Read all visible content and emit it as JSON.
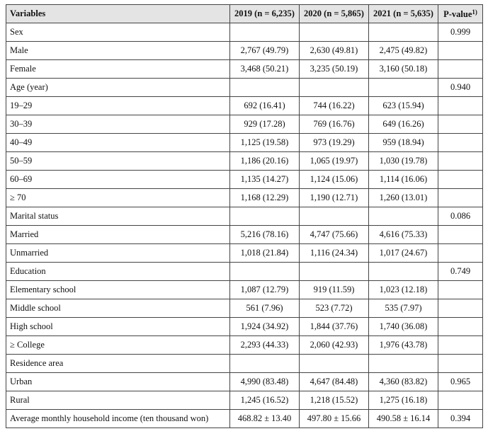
{
  "table": {
    "header": {
      "columns": [
        "Variables",
        "2019 (n = 6,235)",
        "2020 (n = 5,865)",
        "2021 (n = 5,635)"
      ],
      "p_value": {
        "text": "P-value",
        "note": "1)"
      }
    },
    "rows": [
      [
        "Sex",
        null,
        null,
        null,
        "0.999"
      ],
      [
        "Male",
        "2,767 (49.79)",
        "2,630 (49.81)",
        "2,475 (49.82)",
        null
      ],
      [
        "Female",
        "3,468 (50.21)",
        "3,235 (50.19)",
        "3,160 (50.18)",
        null
      ],
      [
        "Age (year)",
        null,
        null,
        null,
        "0.940"
      ],
      [
        "19–29",
        "692 (16.41)",
        "744 (16.22)",
        "623 (15.94)",
        null
      ],
      [
        "30–39",
        "929 (17.28)",
        "769 (16.76)",
        "649 (16.26)",
        null
      ],
      [
        "40–49",
        "1,125 (19.58)",
        "973 (19.29)",
        "959 (18.94)",
        null
      ],
      [
        "50–59",
        "1,186 (20.16)",
        "1,065 (19.97)",
        "1,030 (19.78)",
        null
      ],
      [
        "60–69",
        "1,135 (14.27)",
        "1,124 (15.06)",
        "1,114 (16.06)",
        null
      ],
      [
        "≥ 70",
        "1,168 (12.29)",
        "1,190 (12.71)",
        "1,260 (13.01)",
        null
      ],
      [
        "Marital status",
        null,
        null,
        null,
        "0.086"
      ],
      [
        "Married",
        "5,216 (78.16)",
        "4,747 (75.66)",
        "4,616 (75.33)",
        null
      ],
      [
        "Unmarried",
        "1,018 (21.84)",
        "1,116 (24.34)",
        "1,017 (24.67)",
        null
      ],
      [
        "Education",
        null,
        null,
        null,
        "0.749"
      ],
      [
        "Elementary school",
        "1,087 (12.79)",
        "919 (11.59)",
        "1,023 (12.18)",
        null
      ],
      [
        "Middle school",
        "561 (7.96)",
        "523 (7.72)",
        "535 (7.97)",
        null
      ],
      [
        "High school",
        "1,924 (34.92)",
        "1,844 (37.76)",
        "1,740 (36.08)",
        null
      ],
      [
        "≥ College",
        "2,293 (44.33)",
        "2,060 (42.93)",
        "1,976 (43.78)",
        null
      ],
      [
        "Residence area",
        null,
        null,
        null,
        null
      ],
      [
        "Urban",
        "4,990 (83.48)",
        "4,647 (84.48)",
        "4,360 (83.82)",
        "0.965"
      ],
      [
        "Rural",
        "1,245 (16.52)",
        "1,218 (15.52)",
        "1,275 (16.18)",
        null
      ],
      [
        "Average monthly household income (ten thousand won)",
        "468.82 ± 13.40",
        "497.80 ± 15.66",
        "490.58 ± 16.14",
        "0.394"
      ]
    ]
  }
}
